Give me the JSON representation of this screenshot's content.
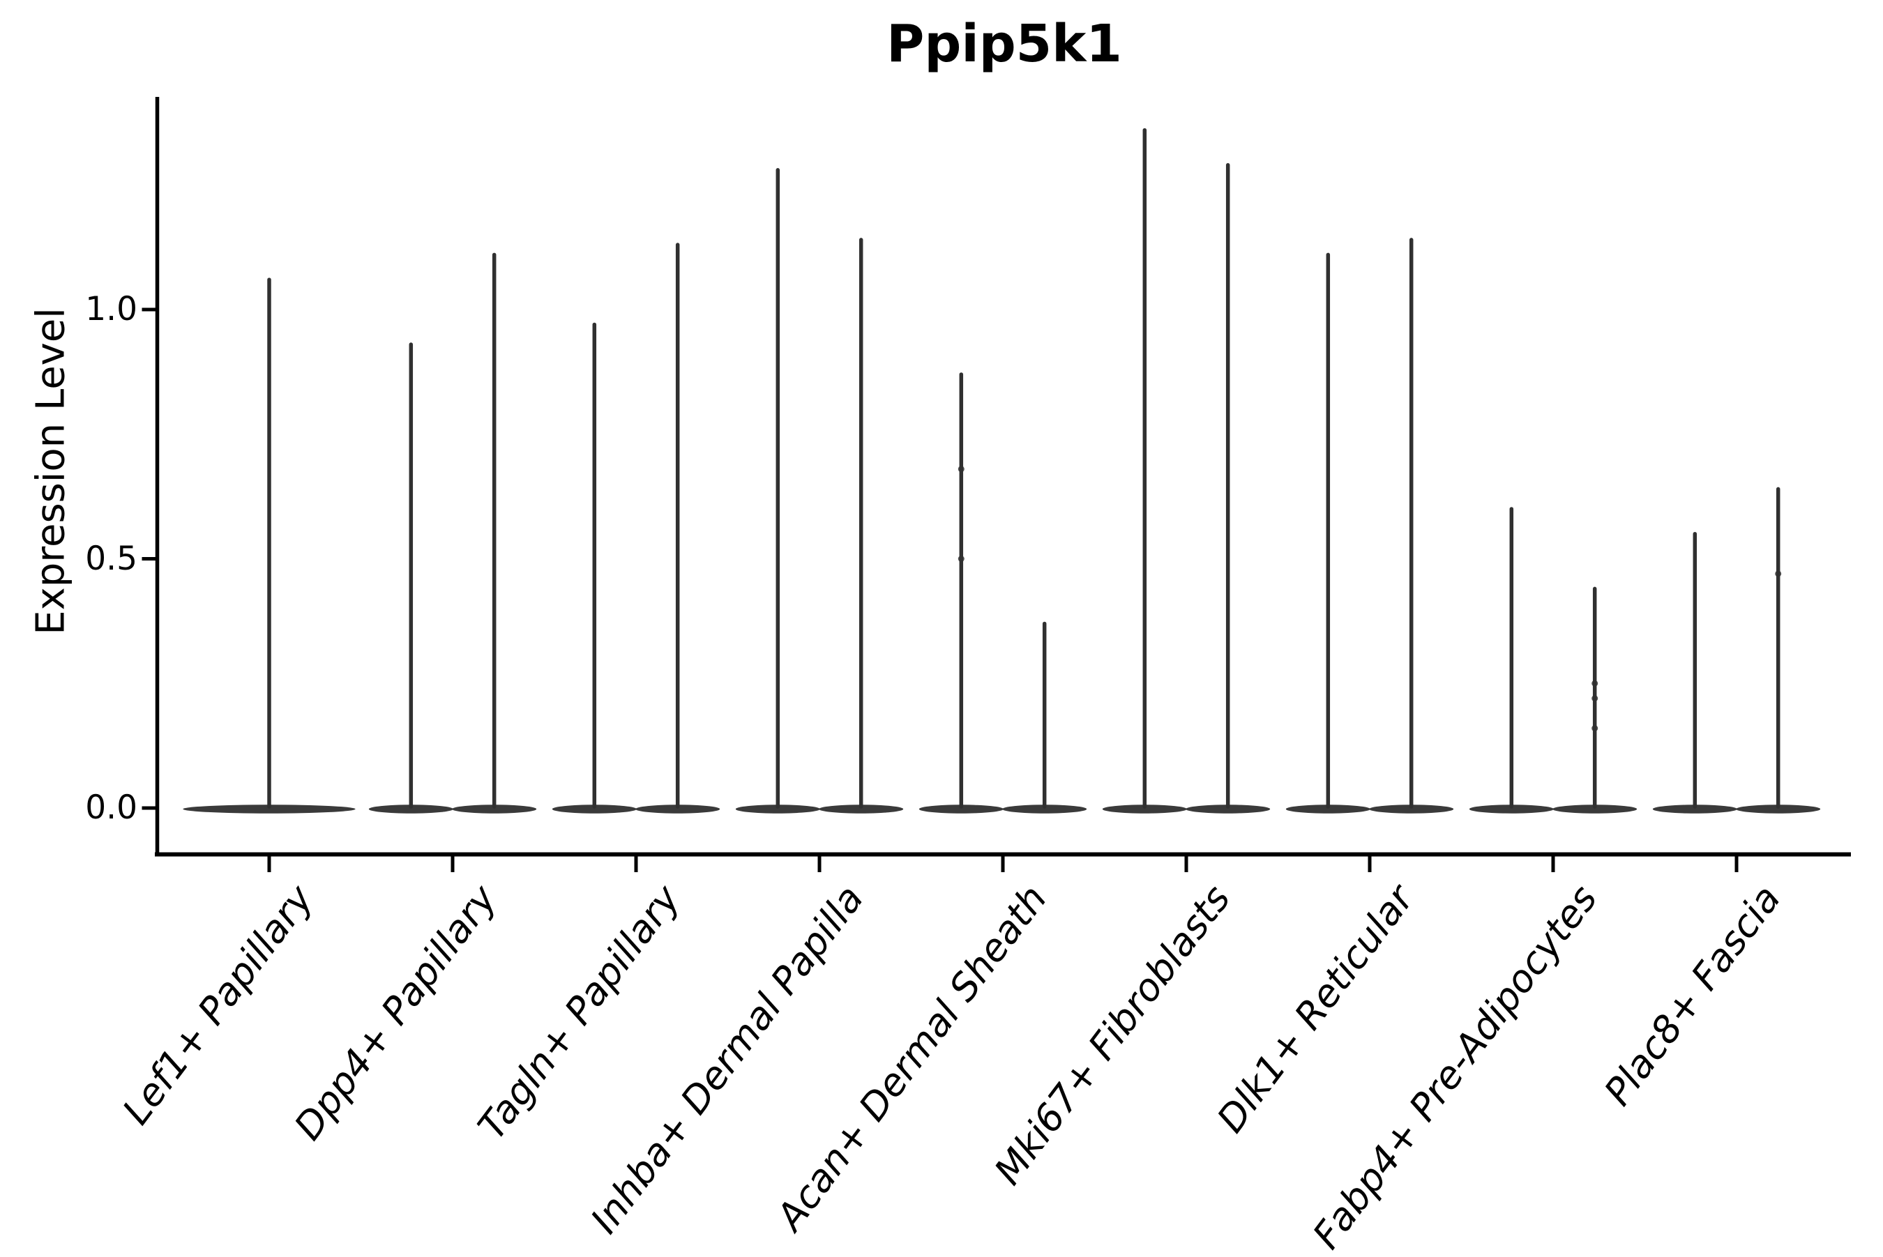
{
  "chart_data": {
    "type": "violin",
    "title": "Ppip5k1",
    "ylabel": "Expression Level",
    "xlabel": "",
    "ylim": [
      -0.09,
      1.43
    ],
    "yticks": [
      0.0,
      0.5,
      1.0
    ],
    "ytick_labels": [
      "0.0",
      "0.5",
      "1.0"
    ],
    "grid": false,
    "legend": false,
    "x_label_rotation_deg": 53,
    "x_label_style": "italic",
    "violin_fill_color": "#3a3a3a",
    "spike_color": "#303030",
    "axis_color": "#000000",
    "text_color": "#000000",
    "background_color": "#ffffff",
    "description": "Violin plot of gene expression; each violin collapses to a flat base at 0 with a thin spike to its maximum value. First category has one centered violin; all others have two side-by-side violins.",
    "categories": [
      {
        "label": "Lef1+ Papillary",
        "violins": [
          {
            "offset": 0.0,
            "half_width": 0.47,
            "max": 1.06
          }
        ]
      },
      {
        "label": "Dpp4+ Papillary",
        "violins": [
          {
            "offset": -0.227,
            "half_width": 0.23,
            "max": 0.93
          },
          {
            "offset": 0.227,
            "half_width": 0.23,
            "max": 1.11
          }
        ]
      },
      {
        "label": "Tagln+ Papillary",
        "violins": [
          {
            "offset": -0.227,
            "half_width": 0.23,
            "max": 0.97
          },
          {
            "offset": 0.227,
            "half_width": 0.23,
            "max": 1.13
          }
        ]
      },
      {
        "label": "Inhba+ Dermal Papilla",
        "violins": [
          {
            "offset": -0.227,
            "half_width": 0.23,
            "max": 1.28
          },
          {
            "offset": 0.227,
            "half_width": 0.23,
            "max": 1.14
          }
        ]
      },
      {
        "label": "Acan+ Dermal Sheath",
        "violins": [
          {
            "offset": -0.227,
            "half_width": 0.23,
            "max": 0.87,
            "points": [
              0.68,
              0.5
            ]
          },
          {
            "offset": 0.227,
            "half_width": 0.23,
            "max": 0.37
          }
        ]
      },
      {
        "label": "Mki67+ Fibroblasts",
        "violins": [
          {
            "offset": -0.227,
            "half_width": 0.23,
            "max": 1.36
          },
          {
            "offset": 0.227,
            "half_width": 0.23,
            "max": 1.29
          }
        ]
      },
      {
        "label": "Dlk1+ Reticular",
        "violins": [
          {
            "offset": -0.227,
            "half_width": 0.23,
            "max": 1.11
          },
          {
            "offset": 0.227,
            "half_width": 0.23,
            "max": 1.14
          }
        ]
      },
      {
        "label": "Fabp4+ Pre-Adipocytes",
        "violins": [
          {
            "offset": -0.227,
            "half_width": 0.23,
            "max": 0.6
          },
          {
            "offset": 0.227,
            "half_width": 0.23,
            "max": 0.44,
            "points": [
              0.25,
              0.22,
              0.16
            ]
          }
        ]
      },
      {
        "label": "Plac8+ Fascia",
        "violins": [
          {
            "offset": -0.227,
            "half_width": 0.23,
            "max": 0.55
          },
          {
            "offset": 0.227,
            "half_width": 0.23,
            "max": 0.64,
            "points": [
              0.47
            ]
          }
        ]
      }
    ]
  }
}
